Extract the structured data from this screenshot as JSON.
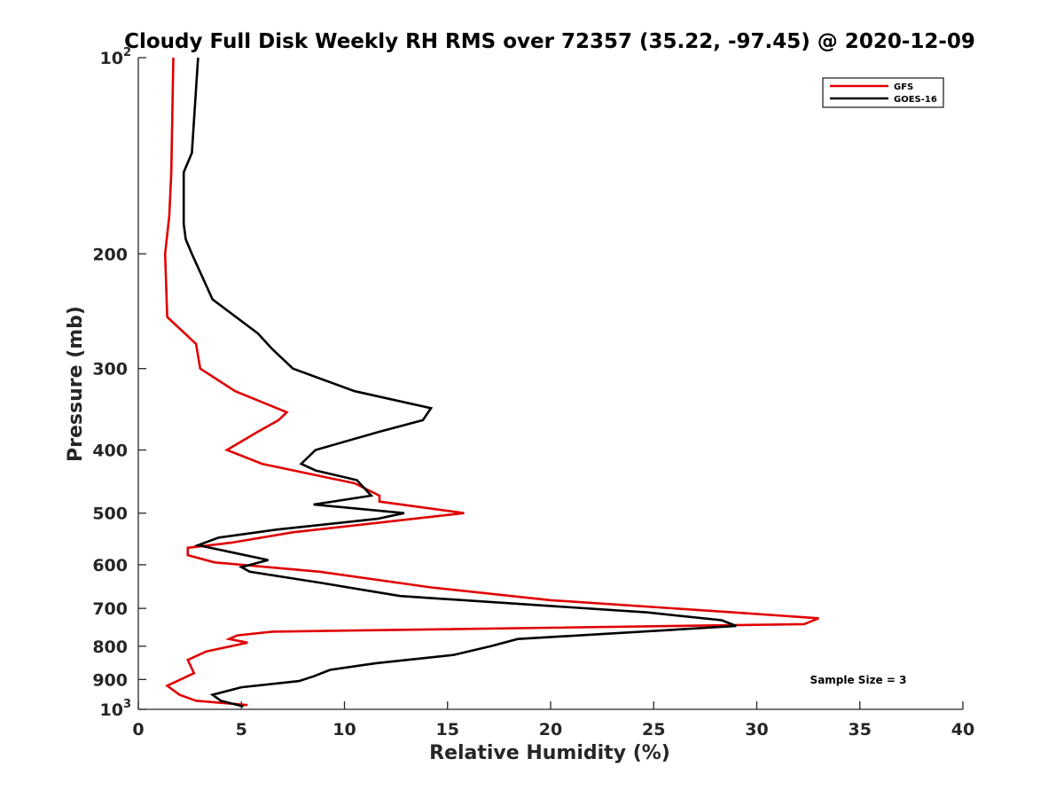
{
  "chart_data": {
    "type": "line",
    "title": "Cloudy Full Disk Weekly RH RMS over 72357 (35.22, -97.45) @ 2020-12-09",
    "xlabel": "Relative Humidity (%)",
    "ylabel": "Pressure (mb)",
    "xlim": [
      0,
      40
    ],
    "ylim": [
      100,
      1000
    ],
    "yscale": "log",
    "y_reversed": true,
    "grid": false,
    "legend_position": "top-right",
    "x_ticks": [
      {
        "value": 0,
        "label": "0"
      },
      {
        "value": 5,
        "label": "5"
      },
      {
        "value": 10,
        "label": "10"
      },
      {
        "value": 15,
        "label": "15"
      },
      {
        "value": 20,
        "label": "20"
      },
      {
        "value": 25,
        "label": "25"
      },
      {
        "value": 30,
        "label": "30"
      },
      {
        "value": 35,
        "label": "35"
      },
      {
        "value": 40,
        "label": "40"
      }
    ],
    "y_ticks": [
      {
        "value": 100,
        "base": "10",
        "exp": "2"
      },
      {
        "value": 200,
        "label": "200"
      },
      {
        "value": 300,
        "label": "300"
      },
      {
        "value": 400,
        "label": "400"
      },
      {
        "value": 500,
        "label": "500"
      },
      {
        "value": 600,
        "label": "600"
      },
      {
        "value": 700,
        "label": "700"
      },
      {
        "value": 800,
        "label": "800"
      },
      {
        "value": 900,
        "label": "900"
      },
      {
        "value": 1000,
        "base": "10",
        "exp": "3"
      }
    ],
    "annotation": "Sample Size = 3",
    "series": [
      {
        "name": "GFS",
        "color": "#e00000",
        "points": [
          [
            1.7,
            100
          ],
          [
            1.6,
            150
          ],
          [
            1.5,
            175
          ],
          [
            1.3,
            200
          ],
          [
            1.4,
            250
          ],
          [
            2.8,
            275
          ],
          [
            3.0,
            300
          ],
          [
            4.7,
            325
          ],
          [
            7.2,
            350
          ],
          [
            6.8,
            360
          ],
          [
            5.8,
            375
          ],
          [
            4.3,
            400
          ],
          [
            6.0,
            420
          ],
          [
            10.5,
            450
          ],
          [
            11.7,
            470
          ],
          [
            11.7,
            480
          ],
          [
            15.8,
            500
          ],
          [
            7.5,
            535
          ],
          [
            4.5,
            555
          ],
          [
            2.4,
            565
          ],
          [
            2.4,
            580
          ],
          [
            3.7,
            595
          ],
          [
            8.8,
            615
          ],
          [
            14.2,
            650
          ],
          [
            20.0,
            680
          ],
          [
            28.9,
            710
          ],
          [
            33.0,
            725
          ],
          [
            32.3,
            740
          ],
          [
            6.5,
            760
          ],
          [
            4.8,
            770
          ],
          [
            4.4,
            780
          ],
          [
            5.3,
            790
          ],
          [
            3.3,
            815
          ],
          [
            2.4,
            840
          ],
          [
            2.7,
            880
          ],
          [
            1.4,
            920
          ],
          [
            2.0,
            950
          ],
          [
            2.8,
            970
          ],
          [
            5.3,
            985
          ]
        ]
      },
      {
        "name": "GOES-16",
        "color": "#000000",
        "points": [
          [
            2.9,
            100
          ],
          [
            2.6,
            140
          ],
          [
            2.2,
            150
          ],
          [
            2.2,
            180
          ],
          [
            2.3,
            190
          ],
          [
            2.6,
            200
          ],
          [
            3.6,
            235
          ],
          [
            5.8,
            265
          ],
          [
            6.5,
            280
          ],
          [
            7.5,
            300
          ],
          [
            10.5,
            325
          ],
          [
            14.2,
            345
          ],
          [
            13.8,
            360
          ],
          [
            11.7,
            375
          ],
          [
            8.6,
            400
          ],
          [
            7.9,
            420
          ],
          [
            8.6,
            430
          ],
          [
            10.6,
            445
          ],
          [
            11.3,
            470
          ],
          [
            8.5,
            485
          ],
          [
            12.9,
            500
          ],
          [
            11.6,
            510
          ],
          [
            6.7,
            530
          ],
          [
            3.9,
            545
          ],
          [
            2.9,
            560
          ],
          [
            6.3,
            590
          ],
          [
            5.0,
            605
          ],
          [
            5.4,
            615
          ],
          [
            8.9,
            640
          ],
          [
            12.7,
            670
          ],
          [
            24.7,
            710
          ],
          [
            28.3,
            730
          ],
          [
            29.0,
            745
          ],
          [
            18.4,
            780
          ],
          [
            17.1,
            800
          ],
          [
            15.3,
            825
          ],
          [
            11.5,
            850
          ],
          [
            9.3,
            870
          ],
          [
            8.5,
            890
          ],
          [
            7.8,
            905
          ],
          [
            5.0,
            925
          ],
          [
            3.6,
            950
          ],
          [
            4.0,
            970
          ],
          [
            5.1,
            990
          ]
        ]
      }
    ]
  }
}
